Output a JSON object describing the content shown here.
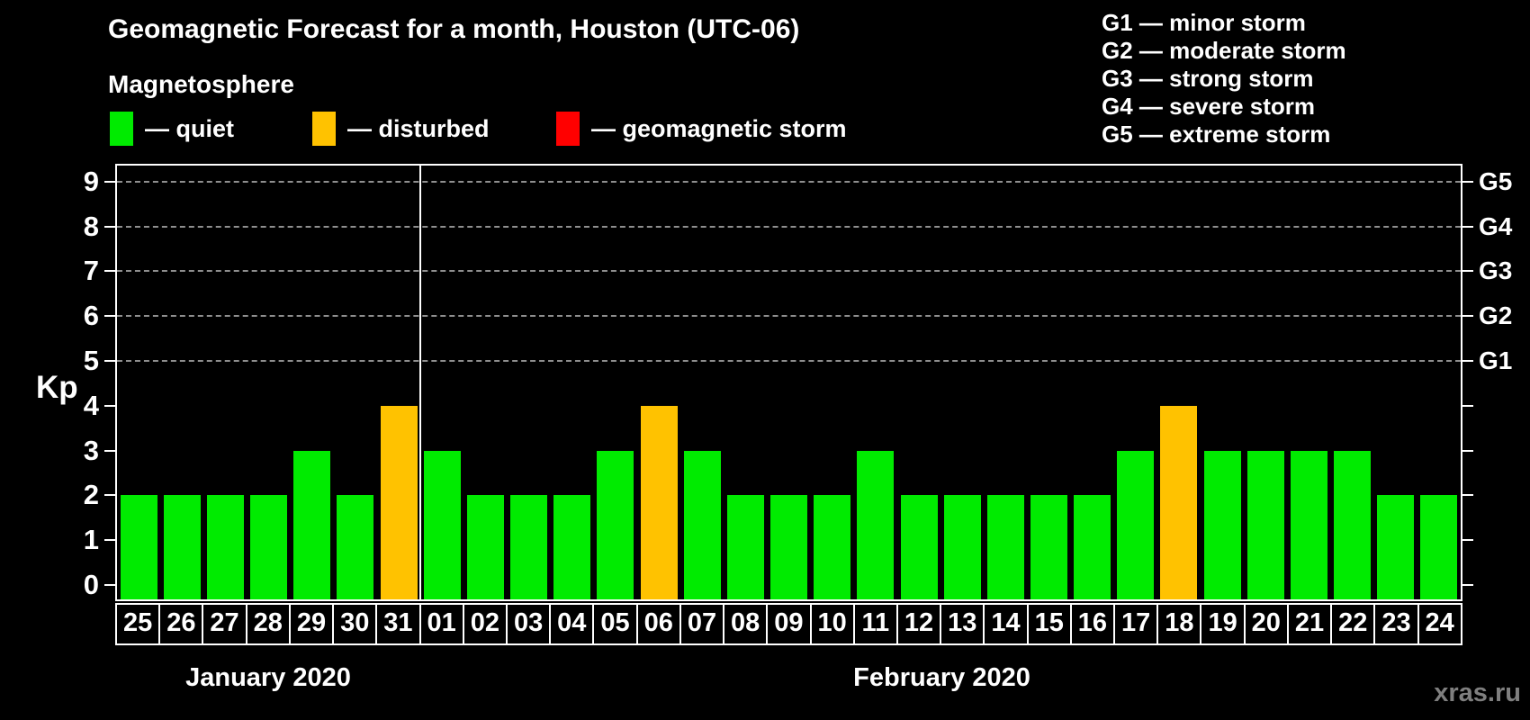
{
  "title": "Geomagnetic Forecast for a month, Houston (UTC-06)",
  "subtitle": "Magnetosphere",
  "legend": {
    "items": [
      {
        "label": "— quiet",
        "color": "#00EB00"
      },
      {
        "label": "— disturbed",
        "color": "#FFC200"
      },
      {
        "label": "— geomagnetic storm",
        "color": "#FF0000"
      }
    ]
  },
  "g_scale_legend": {
    "items": [
      "G1 — minor storm",
      "G2 — moderate storm",
      "G3 — strong storm",
      "G4 — severe storm",
      "G5 — extreme storm"
    ]
  },
  "y_axis": {
    "label": "Kp",
    "ticks": [
      0,
      1,
      2,
      3,
      4,
      5,
      6,
      7,
      8,
      9
    ]
  },
  "right_axis": {
    "labels": [
      {
        "text": "G1",
        "kp": 5
      },
      {
        "text": "G2",
        "kp": 6
      },
      {
        "text": "G3",
        "kp": 7
      },
      {
        "text": "G4",
        "kp": 8
      },
      {
        "text": "G5",
        "kp": 9
      }
    ]
  },
  "months": [
    {
      "label": "January 2020"
    },
    {
      "label": "February 2020"
    }
  ],
  "watermark": "xras.ru",
  "colors": {
    "background": "#000000",
    "text": "#FFFFFF",
    "quiet": "#00EB00",
    "disturbed": "#FFC200",
    "storm": "#FF0000",
    "gridline": "#8F8F8F",
    "watermark": "#7F7F7F"
  },
  "chart_data": {
    "type": "bar",
    "title": "Geomagnetic Forecast for a month, Houston (UTC-06)",
    "xlabel": "",
    "ylabel": "Kp",
    "ylim": [
      0,
      9
    ],
    "yticks": [
      0,
      1,
      2,
      3,
      4,
      5,
      6,
      7,
      8,
      9
    ],
    "grid": "dashed horizontal lines at Kp 5-9 only",
    "storm_gridlines": {
      "G1": 5,
      "G2": 6,
      "G3": 7,
      "G4": 8,
      "G5": 9
    },
    "legend_position": "top",
    "categories": [
      "25",
      "26",
      "27",
      "28",
      "29",
      "30",
      "31",
      "01",
      "02",
      "03",
      "04",
      "05",
      "06",
      "07",
      "08",
      "09",
      "10",
      "11",
      "12",
      "13",
      "14",
      "15",
      "16",
      "17",
      "18",
      "19",
      "20",
      "21",
      "22",
      "23",
      "24"
    ],
    "values": [
      2,
      2,
      2,
      2,
      3,
      2,
      4,
      3,
      2,
      2,
      2,
      3,
      4,
      3,
      2,
      2,
      2,
      3,
      2,
      2,
      2,
      2,
      2,
      3,
      4,
      3,
      3,
      3,
      3,
      2,
      2
    ],
    "points": [
      {
        "month": "January 2020",
        "day": "25",
        "kp": 2,
        "status": "quiet"
      },
      {
        "month": "January 2020",
        "day": "26",
        "kp": 2,
        "status": "quiet"
      },
      {
        "month": "January 2020",
        "day": "27",
        "kp": 2,
        "status": "quiet"
      },
      {
        "month": "January 2020",
        "day": "28",
        "kp": 2,
        "status": "quiet"
      },
      {
        "month": "January 2020",
        "day": "29",
        "kp": 3,
        "status": "quiet"
      },
      {
        "month": "January 2020",
        "day": "30",
        "kp": 2,
        "status": "quiet"
      },
      {
        "month": "January 2020",
        "day": "31",
        "kp": 4,
        "status": "disturbed"
      },
      {
        "month": "February 2020",
        "day": "01",
        "kp": 3,
        "status": "quiet"
      },
      {
        "month": "February 2020",
        "day": "02",
        "kp": 2,
        "status": "quiet"
      },
      {
        "month": "February 2020",
        "day": "03",
        "kp": 2,
        "status": "quiet"
      },
      {
        "month": "February 2020",
        "day": "04",
        "kp": 2,
        "status": "quiet"
      },
      {
        "month": "February 2020",
        "day": "05",
        "kp": 3,
        "status": "quiet"
      },
      {
        "month": "February 2020",
        "day": "06",
        "kp": 4,
        "status": "disturbed"
      },
      {
        "month": "February 2020",
        "day": "07",
        "kp": 3,
        "status": "quiet"
      },
      {
        "month": "February 2020",
        "day": "08",
        "kp": 2,
        "status": "quiet"
      },
      {
        "month": "February 2020",
        "day": "09",
        "kp": 2,
        "status": "quiet"
      },
      {
        "month": "February 2020",
        "day": "10",
        "kp": 2,
        "status": "quiet"
      },
      {
        "month": "February 2020",
        "day": "11",
        "kp": 3,
        "status": "quiet"
      },
      {
        "month": "February 2020",
        "day": "12",
        "kp": 2,
        "status": "quiet"
      },
      {
        "month": "February 2020",
        "day": "13",
        "kp": 2,
        "status": "quiet"
      },
      {
        "month": "February 2020",
        "day": "14",
        "kp": 2,
        "status": "quiet"
      },
      {
        "month": "February 2020",
        "day": "15",
        "kp": 2,
        "status": "quiet"
      },
      {
        "month": "February 2020",
        "day": "16",
        "kp": 2,
        "status": "quiet"
      },
      {
        "month": "February 2020",
        "day": "17",
        "kp": 3,
        "status": "quiet"
      },
      {
        "month": "February 2020",
        "day": "18",
        "kp": 4,
        "status": "disturbed"
      },
      {
        "month": "February 2020",
        "day": "19",
        "kp": 3,
        "status": "quiet"
      },
      {
        "month": "February 2020",
        "day": "20",
        "kp": 3,
        "status": "quiet"
      },
      {
        "month": "February 2020",
        "day": "21",
        "kp": 3,
        "status": "quiet"
      },
      {
        "month": "February 2020",
        "day": "22",
        "kp": 3,
        "status": "quiet"
      },
      {
        "month": "February 2020",
        "day": "23",
        "kp": 2,
        "status": "quiet"
      },
      {
        "month": "February 2020",
        "day": "24",
        "kp": 2,
        "status": "quiet"
      }
    ]
  }
}
